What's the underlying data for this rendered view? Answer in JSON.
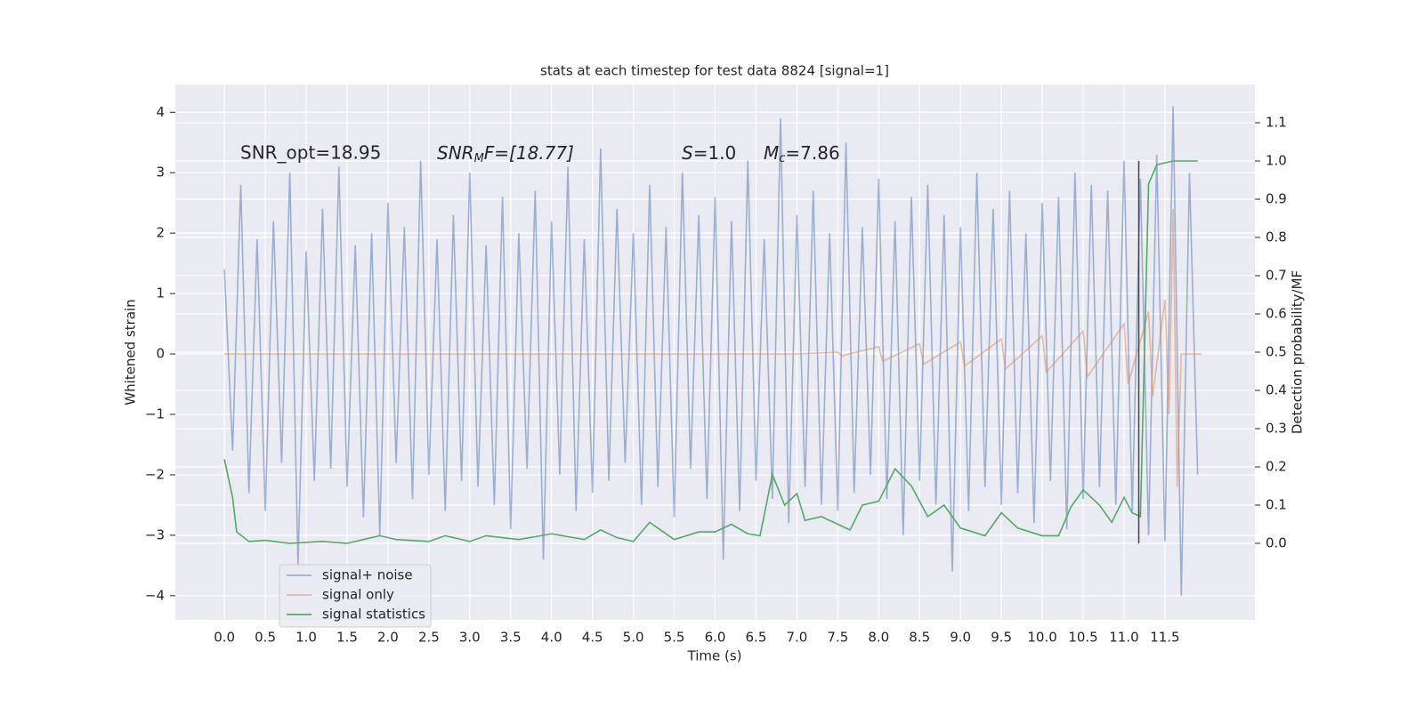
{
  "chart_data": {
    "type": "line",
    "title": "stats at each timestep for test data 8824 [signal=1]",
    "xlabel": "Time (s)",
    "ylabel": "Whitened strain",
    "y2label": "Detection probability/MF",
    "annotations": [
      "SNR_opt=18.95",
      [
        "SNR",
        "M",
        "F=[18.77]"
      ],
      [
        "S",
        "=1.0"
      ],
      [
        "M",
        "c",
        "=7.86"
      ]
    ],
    "xlim": [
      -0.6,
      12.6
    ],
    "ylim": [
      -4.4,
      4.46
    ],
    "y2lim": [
      -0.2,
      1.2
    ],
    "xticks": [
      {
        "value": 0,
        "label": "0.0"
      },
      0.5,
      {
        "value": 1,
        "label": "1.0"
      },
      1.5,
      {
        "value": 2,
        "label": "2.0"
      },
      2.5,
      {
        "value": 3,
        "label": "3.0"
      },
      3.5,
      {
        "value": 4,
        "label": "4.0"
      },
      4.5,
      {
        "value": 5,
        "label": "5.0"
      },
      5.5,
      {
        "value": 6,
        "label": "6.0"
      },
      6.5,
      {
        "value": 7,
        "label": "7.0"
      },
      7.5,
      {
        "value": 8,
        "label": "8.0"
      },
      8.5,
      {
        "value": 9,
        "label": "9.0"
      },
      9.5,
      {
        "value": 10,
        "label": "10.0"
      },
      10.5,
      {
        "value": 11,
        "label": "11.0"
      },
      11.5
    ],
    "yticks": [
      {
        "value": -4,
        "label": "−4"
      },
      {
        "value": -3,
        "label": "−3"
      },
      {
        "value": -2,
        "label": "−2"
      },
      {
        "value": -1,
        "label": "−1"
      },
      0,
      1,
      2,
      3,
      4
    ],
    "y2ticks": [
      {
        "value": 0,
        "label": "0.0"
      },
      0.1,
      0.2,
      0.3,
      0.4,
      0.5,
      0.6,
      0.7,
      0.8,
      0.9,
      {
        "value": 1,
        "label": "1.0"
      },
      1.1
    ],
    "grid": true,
    "legend": "lower left",
    "vline": {
      "x": 11.18,
      "y2": [
        0,
        1
      ],
      "color": "#444444"
    },
    "series": [
      {
        "name": "signal+ noise",
        "color": "#4c72b0",
        "opacity": 0.5,
        "x": [
          0.0,
          0.1,
          0.2,
          0.3,
          0.4,
          0.5,
          0.6,
          0.7,
          0.8,
          0.9,
          1.0,
          1.1,
          1.2,
          1.3,
          1.4,
          1.5,
          1.6,
          1.7,
          1.8,
          1.9,
          2.0,
          2.1,
          2.2,
          2.3,
          2.4,
          2.5,
          2.6,
          2.7,
          2.8,
          2.9,
          3.0,
          3.1,
          3.2,
          3.3,
          3.4,
          3.5,
          3.6,
          3.7,
          3.8,
          3.9,
          4.0,
          4.1,
          4.2,
          4.3,
          4.4,
          4.5,
          4.6,
          4.7,
          4.8,
          4.9,
          5.0,
          5.1,
          5.2,
          5.3,
          5.4,
          5.5,
          5.6,
          5.7,
          5.8,
          5.9,
          6.0,
          6.1,
          6.2,
          6.3,
          6.4,
          6.5,
          6.6,
          6.7,
          6.8,
          6.9,
          7.0,
          7.1,
          7.2,
          7.3,
          7.4,
          7.5,
          7.6,
          7.7,
          7.8,
          7.9,
          8.0,
          8.1,
          8.2,
          8.3,
          8.4,
          8.5,
          8.6,
          8.7,
          8.8,
          8.9,
          9.0,
          9.1,
          9.2,
          9.3,
          9.4,
          9.5,
          9.6,
          9.7,
          9.8,
          9.9,
          10.0,
          10.1,
          10.2,
          10.3,
          10.4,
          10.5,
          10.6,
          10.7,
          10.8,
          10.9,
          11.0,
          11.1,
          11.2,
          11.3,
          11.4,
          11.5,
          11.6,
          11.7,
          11.8,
          11.9
        ],
        "values": [
          1.4,
          -1.6,
          2.8,
          -2.3,
          1.9,
          -2.6,
          2.2,
          -1.8,
          3.0,
          -3.5,
          1.7,
          -2.1,
          2.4,
          -1.9,
          3.1,
          -2.2,
          1.8,
          -2.7,
          2.0,
          -3.0,
          2.5,
          -1.8,
          2.1,
          -2.4,
          3.2,
          -2.0,
          1.9,
          -2.6,
          2.3,
          -2.1,
          3.0,
          -2.2,
          1.8,
          -2.5,
          2.6,
          -2.9,
          2.0,
          -1.9,
          2.7,
          -3.4,
          2.2,
          -2.0,
          3.1,
          -2.6,
          1.9,
          -2.3,
          3.4,
          -2.1,
          2.4,
          -1.8,
          2.0,
          -2.5,
          2.8,
          -2.2,
          2.1,
          -2.7,
          3.0,
          -1.9,
          2.3,
          -2.4,
          2.6,
          -3.4,
          2.2,
          -2.6,
          3.2,
          -2.1,
          1.9,
          -2.4,
          3.9,
          -2.8,
          2.3,
          -2.2,
          2.7,
          -2.5,
          2.0,
          -2.6,
          3.5,
          -2.3,
          2.1,
          -2.0,
          2.9,
          -2.4,
          2.2,
          -3.0,
          2.6,
          -2.1,
          2.8,
          -2.5,
          2.3,
          -3.6,
          2.1,
          -2.6,
          3.0,
          -2.2,
          2.4,
          -2.5,
          2.7,
          -2.3,
          2.0,
          -2.8,
          2.5,
          -2.1,
          2.6,
          -2.9,
          3.0,
          -2.4,
          2.8,
          -2.2,
          2.7,
          -2.5,
          3.2,
          -2.6,
          2.9,
          -3.0,
          3.3,
          -3.1,
          4.1,
          -4.0,
          3.0,
          -2.0
        ]
      },
      {
        "name": "signal only",
        "color": "#dd8452",
        "opacity": 0.5,
        "x": [
          0,
          7.0,
          7.5,
          7.55,
          8.0,
          8.05,
          8.5,
          8.55,
          9.0,
          9.05,
          9.5,
          9.55,
          10.0,
          10.05,
          10.5,
          10.55,
          11.0,
          11.05,
          11.3,
          11.35,
          11.5,
          11.55,
          11.6,
          11.65,
          11.7,
          11.95
        ],
        "values": [
          0,
          0,
          0.03,
          -0.03,
          0.12,
          -0.12,
          0.17,
          -0.17,
          0.2,
          -0.2,
          0.25,
          -0.25,
          0.3,
          -0.3,
          0.38,
          -0.38,
          0.5,
          -0.5,
          0.7,
          -0.7,
          0.9,
          -1.0,
          2.4,
          -2.2,
          0,
          0
        ]
      },
      {
        "name": "signal statistics",
        "color": "#55a868",
        "opacity": 1,
        "axis": "y2",
        "x": [
          0.0,
          0.1,
          0.15,
          0.3,
          0.5,
          0.8,
          1.2,
          1.5,
          1.7,
          1.9,
          2.1,
          2.5,
          2.7,
          3.0,
          3.2,
          3.6,
          4.0,
          4.4,
          4.6,
          4.8,
          5.0,
          5.2,
          5.5,
          5.8,
          6.0,
          6.2,
          6.4,
          6.55,
          6.7,
          6.85,
          7.0,
          7.1,
          7.3,
          7.5,
          7.65,
          7.8,
          8.0,
          8.2,
          8.4,
          8.6,
          8.8,
          9.0,
          9.3,
          9.5,
          9.7,
          10.0,
          10.2,
          10.35,
          10.5,
          10.7,
          10.85,
          11.0,
          11.1,
          11.2,
          11.3,
          11.4,
          11.6,
          11.9
        ],
        "values": [
          0.22,
          0.12,
          0.03,
          0.005,
          0.008,
          0.0,
          0.005,
          0.0,
          0.01,
          0.02,
          0.01,
          0.005,
          0.02,
          0.005,
          0.02,
          0.01,
          0.025,
          0.01,
          0.035,
          0.015,
          0.005,
          0.055,
          0.01,
          0.03,
          0.03,
          0.05,
          0.025,
          0.02,
          0.18,
          0.1,
          0.13,
          0.06,
          0.07,
          0.05,
          0.035,
          0.1,
          0.11,
          0.195,
          0.15,
          0.07,
          0.1,
          0.04,
          0.02,
          0.08,
          0.04,
          0.02,
          0.02,
          0.095,
          0.14,
          0.1,
          0.055,
          0.12,
          0.08,
          0.07,
          0.94,
          0.99,
          1.0,
          1.0
        ]
      }
    ]
  }
}
